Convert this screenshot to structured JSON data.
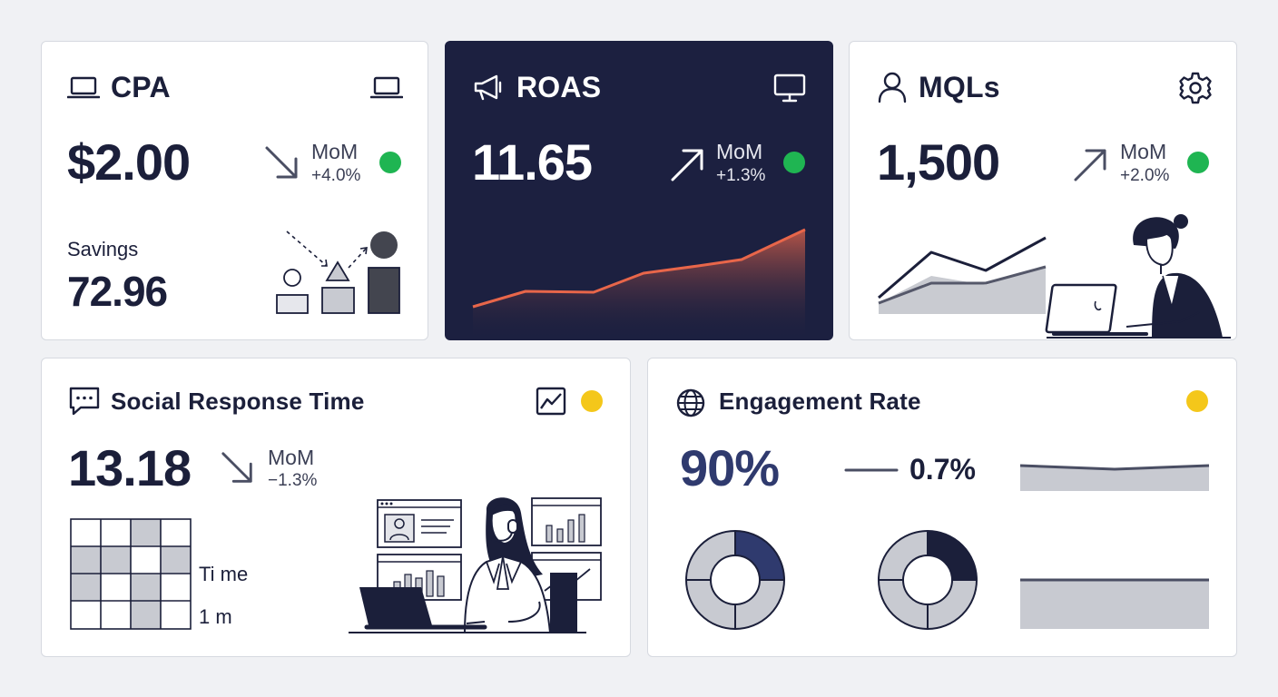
{
  "colors": {
    "background": "#f0f1f4",
    "card": "#ffffff",
    "dark_card": "#1c2040",
    "text_primary": "#1b1f3a",
    "accent_blue": "#2f3a6e",
    "status_green": "#1fb552",
    "status_yellow": "#f4c71a",
    "roas_line": "#e8664a"
  },
  "cpa": {
    "title": "CPA",
    "value": "$2.00",
    "mom_label": "MoM",
    "mom_value": "+4.0%",
    "trend": "down",
    "status": "green",
    "savings_label": "Savings",
    "savings_value": "72.96",
    "title_icon": "laptop-icon",
    "corner_icon": "laptop-icon"
  },
  "roas": {
    "title": "ROAS",
    "value": "11.65",
    "mom_label": "MoM",
    "mom_value": "+1.3%",
    "trend": "up",
    "status": "green",
    "title_icon": "megaphone-icon",
    "corner_icon": "monitor-icon"
  },
  "mqls": {
    "title": "MQLs",
    "value": "1,500",
    "mom_label": "MoM",
    "mom_value": "+2.0%",
    "trend": "up",
    "status": "green",
    "title_icon": "user-icon",
    "corner_icon": "gear-icon"
  },
  "social": {
    "title": "Social Response Time",
    "value": "13.18",
    "mom_label": "MoM",
    "mom_value": "−1.3%",
    "trend": "down",
    "status": "yellow",
    "grid_label_1": "Ti me",
    "grid_label_2": "1 m",
    "title_icon": "chat-icon",
    "corner_icon": "trend-chart-icon"
  },
  "engagement": {
    "title": "Engagement Rate",
    "value": "90%",
    "change": "0.7%",
    "trend": "flat",
    "status": "yellow",
    "title_icon": "globe-icon",
    "donut_1_highlight_fraction": 0.25,
    "donut_2_highlight_fraction": 0.25
  }
}
